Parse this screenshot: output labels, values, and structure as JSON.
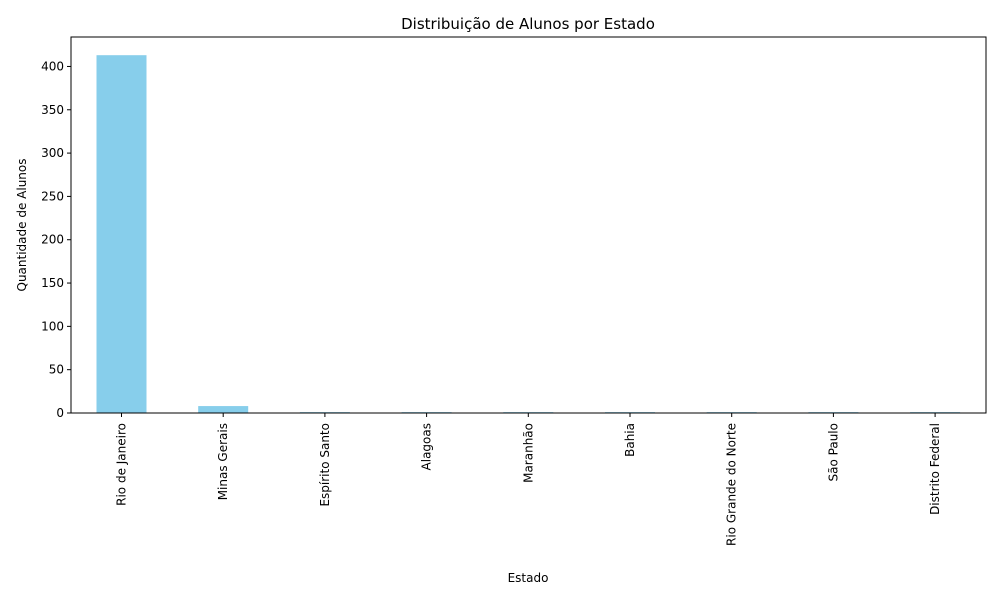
{
  "chart_data": {
    "type": "bar",
    "title": "Distribuição de Alunos por Estado",
    "xlabel": "Estado",
    "ylabel": "Quantidade de Alunos",
    "categories": [
      "Rio de Janeiro",
      "Minas Gerais",
      "Espírito Santo",
      "Alagoas",
      "Maranhão",
      "Bahia",
      "Rio Grande do Norte",
      "São Paulo",
      "Distrito Federal"
    ],
    "values": [
      413,
      8,
      1,
      1,
      1,
      1,
      1,
      1,
      1
    ],
    "ylim": [
      0,
      434
    ],
    "yticks": [
      0,
      50,
      100,
      150,
      200,
      250,
      300,
      350,
      400
    ],
    "bar_color": "#87CEEB",
    "grid": false,
    "legend": false
  }
}
